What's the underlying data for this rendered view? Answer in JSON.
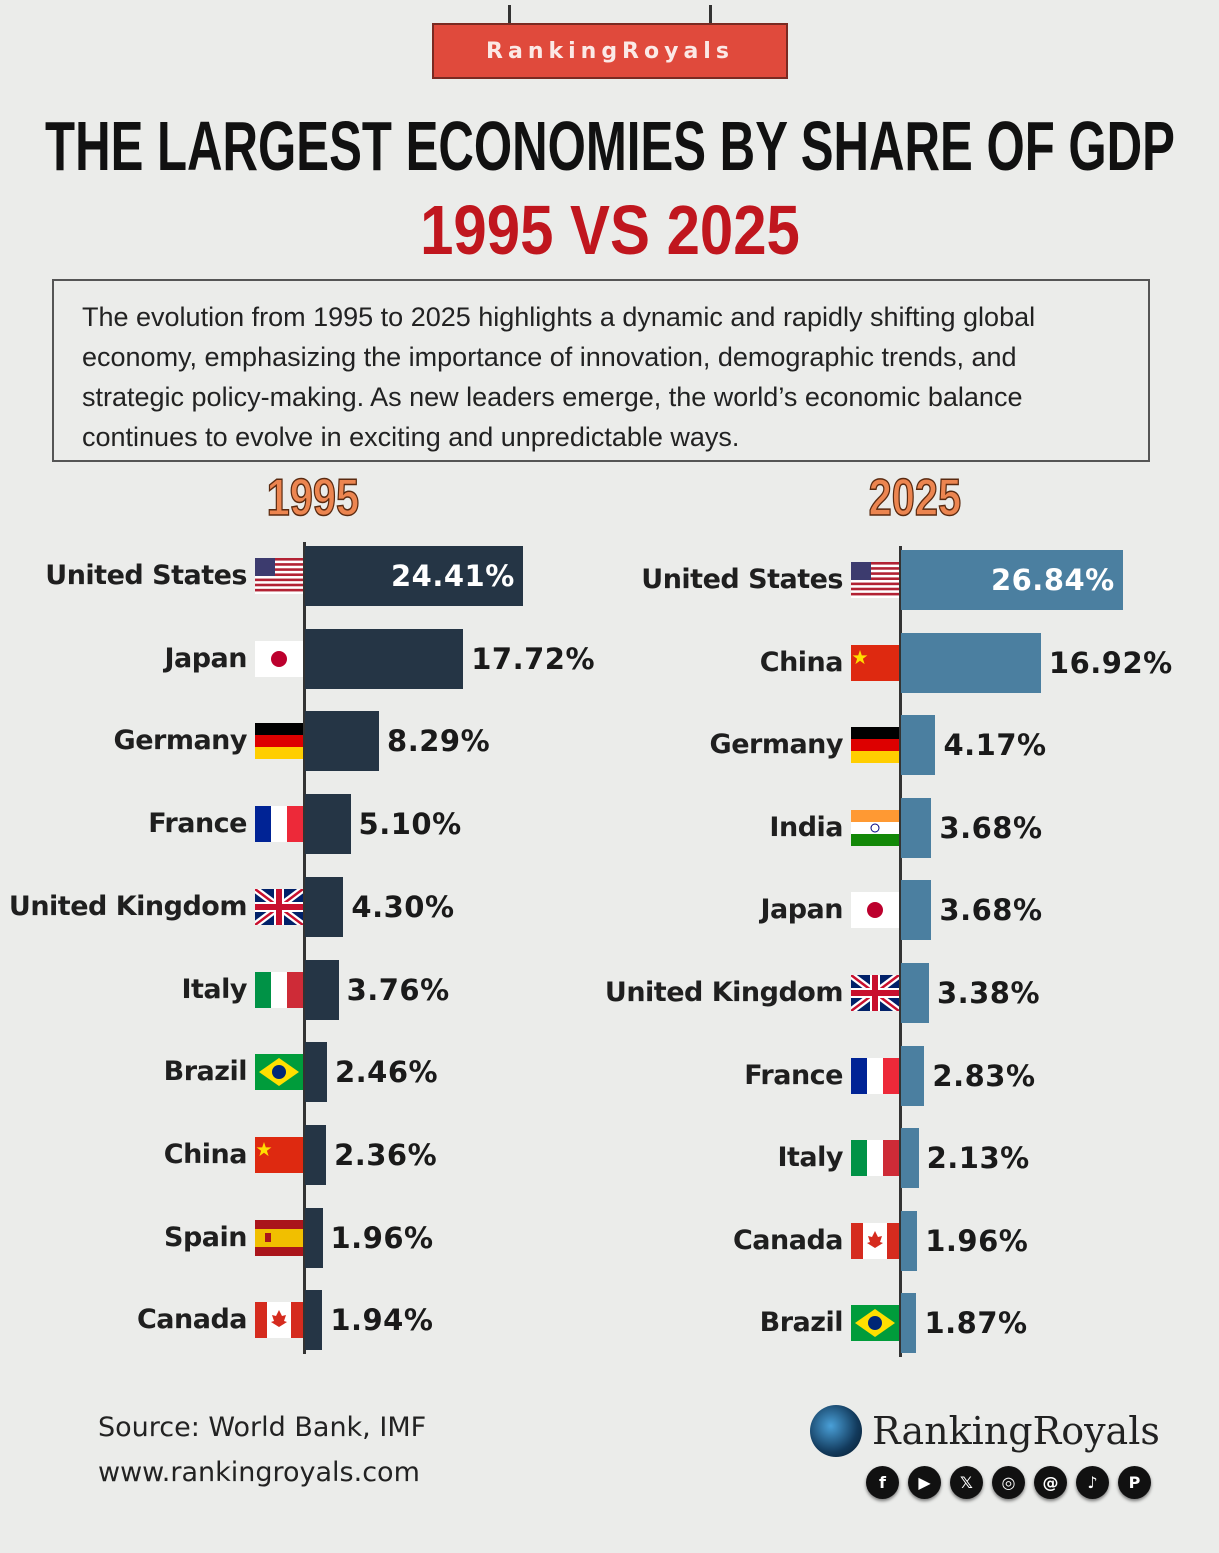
{
  "brand_banner": "RankingRoyals",
  "title": "THE LARGEST ECONOMIES BY SHARE OF GDP",
  "subtitle": "1995 VS 2025",
  "description": "The evolution from 1995 to 2025 highlights a dynamic and rapidly shifting global economy, emphasizing the importance of innovation, demographic trends, and strategic policy-making. As new leaders emerge, the world’s economic balance continues to evolve in exciting and unpredictable ways.",
  "colors": {
    "bar_1995": "#253545",
    "bar_2025": "#4b7fa0",
    "accent": "#c0161e",
    "year_label": "#ec8550"
  },
  "chart_data": [
    {
      "type": "bar",
      "orientation": "horizontal",
      "title": "1995",
      "unit": "%",
      "categories": [
        "United States",
        "Japan",
        "Germany",
        "France",
        "United Kingdom",
        "Italy",
        "Brazil",
        "China",
        "Spain",
        "Canada"
      ],
      "flags": [
        "us",
        "jp",
        "de",
        "fr",
        "uk",
        "it",
        "br",
        "cn",
        "es",
        "ca"
      ],
      "values": [
        24.41,
        17.72,
        8.29,
        5.1,
        4.3,
        3.76,
        2.46,
        2.36,
        1.96,
        1.94
      ],
      "labels": [
        "24.41%",
        "17.72%",
        "8.29%",
        "5.10%",
        "4.30%",
        "3.76%",
        "2.46%",
        "2.36%",
        "1.96%",
        "1.94%"
      ]
    },
    {
      "type": "bar",
      "orientation": "horizontal",
      "title": "2025",
      "unit": "%",
      "categories": [
        "United States",
        "China",
        "Germany",
        "India",
        "Japan",
        "United Kingdom",
        "France",
        "Italy",
        "Canada",
        "Brazil"
      ],
      "flags": [
        "us",
        "cn",
        "de",
        "in",
        "jp",
        "uk",
        "fr",
        "it",
        "ca",
        "br"
      ],
      "values": [
        26.84,
        16.92,
        4.17,
        3.68,
        3.68,
        3.38,
        2.83,
        2.13,
        1.96,
        1.87
      ],
      "labels": [
        "26.84%",
        "16.92%",
        "4.17%",
        "3.68%",
        "3.68%",
        "3.38%",
        "2.83%",
        "2.13%",
        "1.96%",
        "1.87%"
      ]
    }
  ],
  "footer": {
    "source": "Source: World Bank, IMF",
    "website": "www.rankingroyals.com",
    "logo_text": "RankingRoyals",
    "social_icons": [
      "facebook-icon",
      "youtube-icon",
      "x-icon",
      "instagram-icon",
      "threads-icon",
      "tiktok-icon",
      "pinterest-icon"
    ],
    "social_glyphs": [
      "f",
      "▶",
      "𝕏",
      "◎",
      "@",
      "♪",
      "P"
    ]
  }
}
